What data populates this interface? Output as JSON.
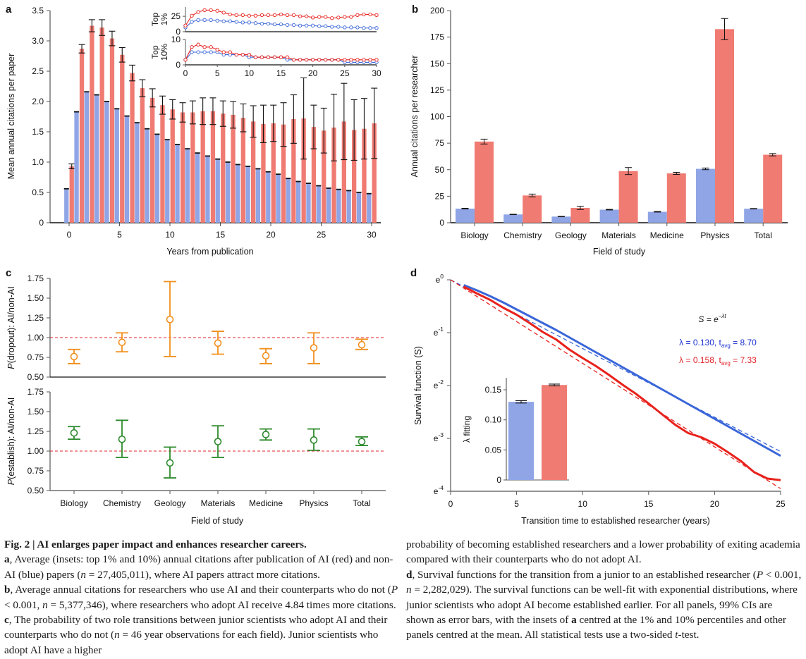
{
  "figure": {
    "colors": {
      "ai": "#f07b72",
      "non_ai": "#8fa5e6",
      "ai_line": "#e8221c",
      "non_ai_line": "#3a66d8",
      "dropout": "#f0901e",
      "establish": "#2e8b2e",
      "ref_line": "#e0262b",
      "blue_text": "#1a30d0",
      "red_text": "#e0262b"
    }
  },
  "chart_data": [
    {
      "panel": "a",
      "type": "bar",
      "xlabel": "Years from publication",
      "ylabel": "Mean annual citations per paper",
      "ylim": [
        0,
        3.5
      ],
      "xlim": [
        -2,
        31
      ],
      "yticks": [
        "0",
        "0.5",
        "1.0",
        "1.5",
        "2.0",
        "2.5",
        "3.0",
        "3.5"
      ],
      "ytick_values": [
        0,
        0.5,
        1.0,
        1.5,
        2.0,
        2.5,
        3.0,
        3.5
      ],
      "xticks": [
        "0",
        "5",
        "10",
        "15",
        "20",
        "25",
        "30"
      ],
      "xtick_values": [
        0,
        5,
        10,
        15,
        20,
        25,
        30
      ],
      "x": [
        0,
        1,
        2,
        3,
        4,
        5,
        6,
        7,
        8,
        9,
        10,
        11,
        12,
        13,
        14,
        15,
        16,
        17,
        18,
        19,
        20,
        21,
        22,
        23,
        24,
        25,
        26,
        27,
        28,
        29,
        30
      ],
      "series": [
        {
          "name": "non-AI",
          "color_key": "non_ai",
          "values": [
            0.56,
            1.83,
            2.16,
            2.11,
            2.0,
            1.88,
            1.76,
            1.65,
            1.55,
            1.46,
            1.37,
            1.29,
            1.22,
            1.15,
            1.1,
            1.05,
            1.0,
            0.96,
            0.93,
            0.89,
            0.84,
            0.8,
            0.73,
            0.68,
            0.65,
            0.61,
            0.57,
            0.55,
            0.53,
            0.5,
            0.48
          ],
          "err": [
            0.005,
            0.005,
            0.005,
            0.005,
            0.005,
            0.005,
            0.005,
            0.005,
            0.005,
            0.005,
            0.005,
            0.005,
            0.005,
            0.005,
            0.005,
            0.005,
            0.005,
            0.005,
            0.005,
            0.005,
            0.005,
            0.005,
            0.005,
            0.005,
            0.005,
            0.005,
            0.005,
            0.005,
            0.005,
            0.005,
            0.005
          ]
        },
        {
          "name": "AI",
          "color_key": "ai",
          "values": [
            0.93,
            2.87,
            3.25,
            3.22,
            3.04,
            2.77,
            2.47,
            2.22,
            2.06,
            1.94,
            1.87,
            1.82,
            1.82,
            1.84,
            1.84,
            1.8,
            1.78,
            1.73,
            1.67,
            1.63,
            1.64,
            1.62,
            1.71,
            1.72,
            1.58,
            1.52,
            1.57,
            1.67,
            1.53,
            1.55,
            1.64
          ],
          "err": [
            0.04,
            0.07,
            0.1,
            0.13,
            0.12,
            0.12,
            0.13,
            0.14,
            0.15,
            0.15,
            0.16,
            0.16,
            0.19,
            0.22,
            0.22,
            0.21,
            0.22,
            0.23,
            0.26,
            0.31,
            0.3,
            0.36,
            0.4,
            0.67,
            0.36,
            0.37,
            0.55,
            0.63,
            0.5,
            0.5,
            0.58
          ]
        }
      ],
      "insets": [
        {
          "ylabel": "Top 1%",
          "ylim": [
            0,
            40
          ],
          "yticks": [
            "0",
            "25"
          ],
          "ytick_values": [
            0,
            25
          ],
          "x": [
            0,
            1,
            2,
            3,
            4,
            5,
            6,
            7,
            8,
            9,
            10,
            11,
            12,
            13,
            14,
            15,
            16,
            17,
            18,
            19,
            20,
            21,
            22,
            23,
            24,
            25,
            26,
            27,
            28,
            29,
            30
          ],
          "series": [
            {
              "name": "non-AI",
              "color_key": "non_ai_line",
              "values": [
                7,
                16,
                19,
                19,
                19,
                18,
                17,
                17,
                16,
                15,
                15,
                14,
                13,
                13,
                12,
                12,
                11,
                11,
                10,
                10,
                10,
                9,
                9,
                8,
                8,
                7,
                7,
                7,
                6,
                6,
                6
              ]
            },
            {
              "name": "AI",
              "color_key": "ai_line",
              "values": [
                10,
                26,
                32,
                35,
                35,
                34,
                31,
                28,
                27,
                27,
                26,
                26,
                27,
                27,
                27,
                28,
                27,
                27,
                25,
                25,
                23,
                24,
                24,
                22,
                23,
                24,
                24,
                27,
                28,
                28,
                27
              ]
            }
          ]
        },
        {
          "ylabel": "Top 10%",
          "ylim": [
            0,
            10
          ],
          "yticks": [
            "0",
            "10"
          ],
          "ytick_values": [
            0,
            10
          ],
          "xticks": [
            "0",
            "5",
            "10",
            "15",
            "20",
            "25",
            "30"
          ],
          "xtick_values": [
            0,
            5,
            10,
            15,
            20,
            25,
            30
          ],
          "x": [
            0,
            1,
            2,
            3,
            4,
            5,
            6,
            7,
            8,
            9,
            10,
            11,
            12,
            13,
            14,
            15,
            16,
            17,
            18,
            19,
            20,
            21,
            22,
            23,
            24,
            25,
            26,
            27,
            28,
            29,
            30
          ],
          "series": [
            {
              "name": "non-AI",
              "color_key": "non_ai_line",
              "values": [
                2,
                5,
                5,
                5,
                5,
                5,
                4,
                4,
                4,
                4,
                3,
                3,
                3,
                3,
                3,
                3,
                2,
                2,
                2,
                2,
                2,
                2,
                2,
                2,
                2,
                1,
                1,
                1,
                1,
                1,
                1
              ]
            },
            {
              "name": "AI",
              "color_key": "ai_line",
              "values": [
                2,
                7,
                8,
                7,
                7,
                6,
                5,
                5,
                4,
                4,
                4,
                3,
                3,
                3,
                3,
                3,
                3,
                2,
                2,
                2,
                2,
                2,
                2,
                2,
                2,
                2,
                2,
                2,
                2,
                2,
                2
              ]
            }
          ]
        }
      ]
    },
    {
      "panel": "b",
      "type": "bar",
      "xlabel": "Field of study",
      "ylabel": "Annual citations per researcher",
      "ylim": [
        0,
        200
      ],
      "yticks": [
        "0",
        "25",
        "50",
        "75",
        "100",
        "125",
        "150",
        "175",
        "200"
      ],
      "ytick_values": [
        0,
        25,
        50,
        75,
        100,
        125,
        150,
        175,
        200
      ],
      "categories": [
        "Biology",
        "Chemistry",
        "Geology",
        "Materials",
        "Medicine",
        "Physics",
        "Total"
      ],
      "series": [
        {
          "name": "non-AI",
          "color_key": "non_ai",
          "values": [
            13.3,
            7.8,
            5.8,
            12.3,
            10.3,
            50.8,
            13.2
          ],
          "err": [
            0.3,
            0.2,
            0.2,
            0.3,
            0.3,
            0.8,
            0.2
          ]
        },
        {
          "name": "AI",
          "color_key": "ai",
          "values": [
            76.5,
            25.7,
            14.0,
            48.7,
            46.5,
            182.5,
            64.1
          ],
          "err": [
            2.3,
            1.3,
            1.6,
            3.3,
            1.0,
            10.0,
            1.1
          ]
        }
      ]
    },
    {
      "panel": "c",
      "type": "scatter",
      "xlabel": "Field of study",
      "categories": [
        "Biology",
        "Chemistry",
        "Geology",
        "Materials",
        "Medicine",
        "Physics",
        "Total"
      ],
      "subplots": [
        {
          "ylabel_italic": "P",
          "ylabel_rest": "(dropout): AI/non-AI",
          "ylim": [
            0.5,
            1.75
          ],
          "yticks": [
            "0.50",
            "0.75",
            "1.00",
            "1.25",
            "1.50",
            "1.75"
          ],
          "ytick_values": [
            0.5,
            0.75,
            1.0,
            1.25,
            1.5,
            1.75
          ],
          "reference": 1.0,
          "color_key": "dropout",
          "values": [
            0.76,
            0.94,
            1.23,
            0.93,
            0.77,
            0.87,
            0.91
          ],
          "ci_low": [
            0.67,
            0.82,
            0.76,
            0.79,
            0.67,
            0.67,
            0.85
          ],
          "ci_high": [
            0.85,
            1.06,
            1.71,
            1.08,
            0.86,
            1.06,
            0.98
          ]
        },
        {
          "ylabel_italic": "P",
          "ylabel_rest": "(establish): AI/non-AI",
          "ylim": [
            0.5,
            1.75
          ],
          "yticks": [
            "0.50",
            "0.75",
            "1.00",
            "1.25",
            "1.50",
            "1.75"
          ],
          "ytick_values": [
            0.5,
            0.75,
            1.0,
            1.25,
            1.5,
            1.75
          ],
          "reference": 1.0,
          "color_key": "establish",
          "values": [
            1.23,
            1.15,
            0.85,
            1.12,
            1.21,
            1.14,
            1.12
          ],
          "ci_low": [
            1.15,
            0.92,
            0.66,
            0.92,
            1.14,
            1.01,
            1.07
          ],
          "ci_high": [
            1.31,
            1.39,
            1.05,
            1.32,
            1.28,
            1.28,
            1.18
          ]
        }
      ]
    },
    {
      "panel": "d",
      "type": "line",
      "xlabel": "Transition time to established researcher (years)",
      "ylabel": "Survival function (S)",
      "xlim": [
        0,
        25
      ],
      "ylim_log": [
        -4,
        0
      ],
      "xticks": [
        "0",
        "5",
        "10",
        "15",
        "20",
        "25"
      ],
      "xtick_values": [
        0,
        5,
        10,
        15,
        20,
        25
      ],
      "yticks_exp": [
        "0",
        "-1",
        "-2",
        "-3",
        "-4"
      ],
      "ytick_values": [
        0,
        -1,
        -2,
        -3,
        -4
      ],
      "ytick_base": "e",
      "formula": {
        "lhs": "S = e",
        "exp": "−λt"
      },
      "annotations": [
        {
          "lambda_label": "λ = 0.130, t",
          "sub": "avg",
          "tail": " = 8.70",
          "color_key": "blue_text"
        },
        {
          "lambda_label": "λ = 0.158, t",
          "sub": "avg",
          "tail": " = 7.33",
          "color_key": "red_text"
        }
      ],
      "series": [
        {
          "name": "non-AI",
          "color_key": "non_ai_line",
          "x": [
            1,
            2,
            3,
            4,
            5,
            6,
            7,
            8,
            9,
            10,
            11,
            12,
            13,
            14,
            15,
            16,
            17,
            18,
            19,
            20,
            21,
            22,
            23,
            24,
            25
          ],
          "log_s": [
            -0.1,
            -0.2,
            -0.31,
            -0.43,
            -0.56,
            -0.69,
            -0.82,
            -0.95,
            -1.09,
            -1.23,
            -1.37,
            -1.51,
            -1.65,
            -1.79,
            -1.93,
            -2.07,
            -2.21,
            -2.35,
            -2.49,
            -2.63,
            -2.77,
            -2.91,
            -3.05,
            -3.19,
            -3.33
          ],
          "fit_lambda": 0.13
        },
        {
          "name": "AI",
          "color_key": "ai_line",
          "x": [
            1,
            2,
            3,
            4,
            5,
            6,
            7,
            8,
            9,
            10,
            11,
            12,
            13,
            14,
            15,
            16,
            17,
            18,
            19,
            20,
            21,
            22,
            23,
            24,
            25
          ],
          "log_s": [
            -0.13,
            -0.26,
            -0.38,
            -0.53,
            -0.66,
            -0.82,
            -0.99,
            -1.13,
            -1.32,
            -1.48,
            -1.63,
            -1.8,
            -1.98,
            -2.15,
            -2.34,
            -2.54,
            -2.74,
            -2.9,
            -2.98,
            -3.1,
            -3.26,
            -3.43,
            -3.64,
            -3.76,
            -3.79
          ],
          "fit_lambda": 0.158
        }
      ],
      "inset": {
        "type": "bar",
        "ylabel": "λ fitting",
        "ylim": [
          0,
          0.17
        ],
        "yticks": [
          "0",
          "0.05",
          "0.10",
          "0.15"
        ],
        "ytick_values": [
          0,
          0.05,
          0.1,
          0.15
        ],
        "categories": [
          "non-AI",
          "AI"
        ],
        "values": [
          0.13,
          0.158
        ],
        "err": [
          0.002,
          0.0015
        ],
        "color_keys": [
          "non_ai",
          "ai"
        ]
      }
    }
  ],
  "caption": {
    "title": "Fig. 2 | AI enlarges paper impact and enhances researcher careers.",
    "a_letter": "a",
    "a_text1": ", Average (insets: top 1% and 10%) annual citations after publication of AI (red) and non-AI (blue) papers (",
    "a_n": "n",
    "a_text2": " = 27,405,011), where AI papers attract more citations.",
    "b_letter": "b",
    "b_text1": ", Average annual citations for researchers who use AI and their counterparts who do not (",
    "b_p": "P",
    "b_text2": " < 0.001, ",
    "b_n": "n",
    "b_text3": " = 5,377,346), where researchers who adopt AI receive 4.84 times more citations. ",
    "c_letter": "c",
    "c_text1": ", The probability of two role transitions between junior scientists who adopt AI and their counterparts who do not (",
    "c_n": "n",
    "c_text2": " = 46 year observations for each field). Junior scientists who adopt AI have a higher",
    "right_text1": "probability of becoming established researchers and a lower probability of exiting academia compared with their counterparts who do not adopt AI.",
    "d_letter": "d",
    "d_text1": ", Survival functions for the transition from a junior to an established researcher (",
    "d_p": "P",
    "d_text2": " < 0.001, ",
    "d_n": "n",
    "d_text3": " = 2,282,029). The survival functions can be well-fit with exponential distributions, where junior scientists who adopt AI become established earlier. For all panels, 99% CIs are shown as error bars, with the insets of ",
    "d_a": "a",
    "d_text4": " centred at the 1% and 10% percentiles and other panels centred at the mean. All statistical tests use a two-sided ",
    "d_t": "t",
    "d_text5": "-test."
  }
}
